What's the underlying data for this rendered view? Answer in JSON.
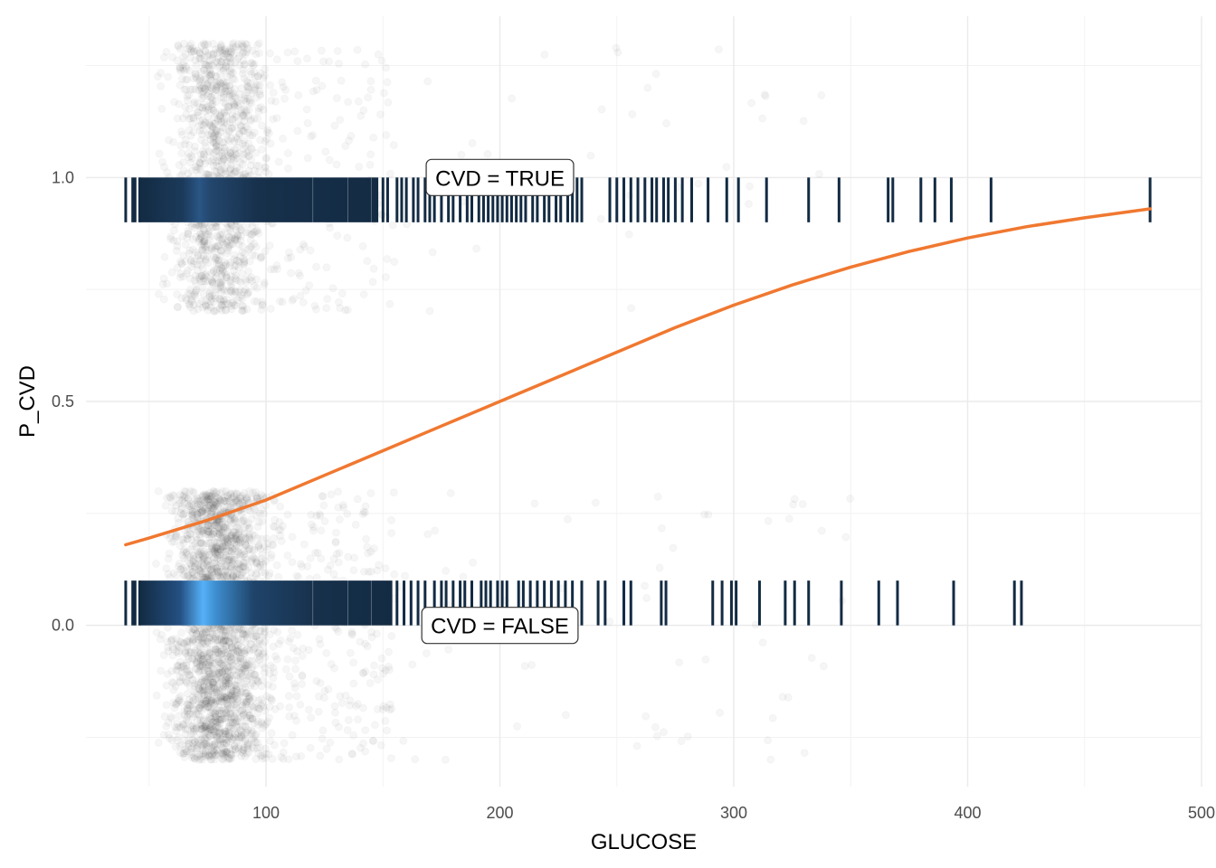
{
  "chart_data": {
    "type": "scatter",
    "title": "",
    "xlabel": "GLUCOSE",
    "ylabel": "P_CVD",
    "xlim": [
      23,
      500
    ],
    "ylim": [
      -0.36,
      1.36
    ],
    "x_ticks": [
      100,
      200,
      300,
      400,
      500
    ],
    "x_tick_labels": [
      "100",
      "200",
      "300",
      "400",
      "500"
    ],
    "y_ticks": [
      0.0,
      0.5,
      1.0
    ],
    "y_tick_labels": [
      "0.0",
      "0.5",
      "1.0"
    ],
    "grid": true,
    "annotations": [
      {
        "text": "CVD = TRUE",
        "x": 200,
        "y": 1.0
      },
      {
        "text": "CVD = FALSE",
        "x": 200,
        "y": 0.0
      }
    ],
    "series": [
      {
        "kind": "jitter",
        "color": "#000000",
        "opacity": 0.035,
        "note_group": "CVD=1",
        "y_center": 1.0
      },
      {
        "kind": "jitter",
        "color": "#000000",
        "opacity": 0.035,
        "note_group": "CVD=0",
        "y_center": 0.0
      },
      {
        "kind": "rug",
        "group": "TRUE",
        "y_range": [
          0.9,
          1.0
        ],
        "color_low": "#132B43",
        "color_high": "#56B1F7",
        "x_individual": [
          40,
          43,
          44,
          46,
          150,
          152,
          156,
          158,
          160,
          163,
          165,
          168,
          170,
          172,
          175,
          178,
          180,
          183,
          186,
          188,
          191,
          193,
          195,
          197,
          199,
          201,
          203,
          205,
          207,
          209,
          211,
          214,
          216,
          219,
          221,
          224,
          226,
          229,
          231,
          233,
          235,
          247,
          250,
          253,
          256,
          259,
          262,
          265,
          267,
          270,
          272,
          275,
          278,
          282,
          289,
          297,
          302,
          314,
          332,
          345,
          366,
          368,
          380,
          386,
          393,
          410,
          478
        ]
      },
      {
        "kind": "rug",
        "group": "FALSE",
        "y_range": [
          0.0,
          0.1
        ],
        "color_low": "#132B43",
        "color_high": "#56B1F7",
        "x_individual": [
          40,
          43,
          44,
          46,
          156,
          159,
          162,
          165,
          168,
          172,
          175,
          177,
          180,
          183,
          185,
          188,
          192,
          194,
          196,
          199,
          201,
          203,
          208,
          210,
          213,
          216,
          219,
          222,
          225,
          228,
          231,
          235,
          242,
          245,
          253,
          256,
          269,
          271,
          291,
          295,
          299,
          301,
          311,
          322,
          326,
          332,
          346,
          362,
          370,
          394,
          420,
          423
        ]
      },
      {
        "kind": "line",
        "name": "",
        "color": "#F07830",
        "x": [
          40,
          50,
          75,
          100,
          125,
          150,
          175,
          200,
          225,
          250,
          275,
          300,
          325,
          350,
          375,
          400,
          425,
          450,
          478
        ],
        "y": [
          0.18,
          0.195,
          0.235,
          0.28,
          0.335,
          0.39,
          0.445,
          0.5,
          0.555,
          0.61,
          0.665,
          0.715,
          0.76,
          0.8,
          0.835,
          0.865,
          0.89,
          0.91,
          0.93
        ]
      }
    ]
  }
}
